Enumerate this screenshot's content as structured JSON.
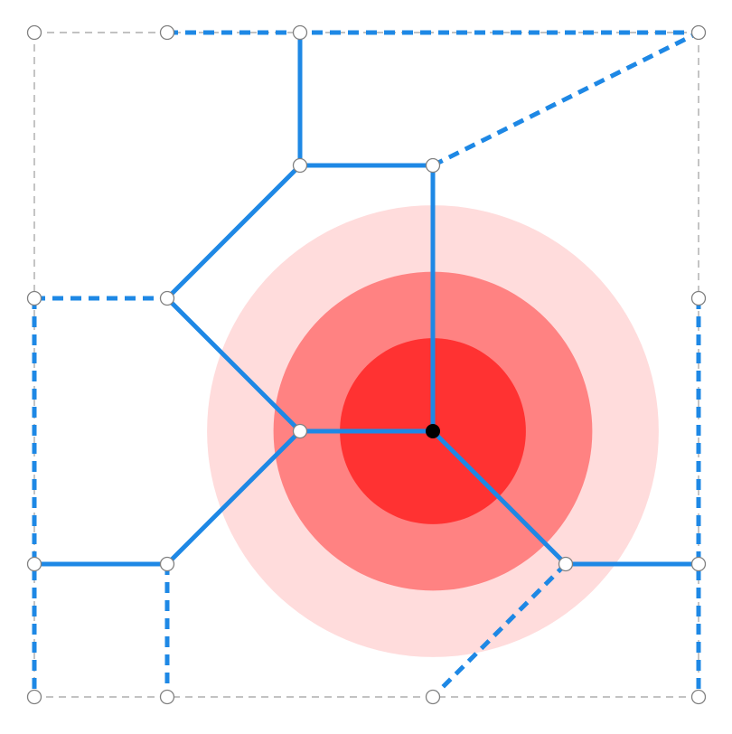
{
  "colors": {
    "background": "#ffffff",
    "edge": "#1e88e5",
    "boundary": "#9e9e9e",
    "ring_outer": "#ffdcdc",
    "ring_middle": "#ff8282",
    "ring_inner": "#ff3232",
    "center_node": "#000000",
    "node_fill": "#ffffff",
    "node_stroke": "#808080"
  },
  "diagram": {
    "nodes": [
      {
        "id": "tl",
        "gx": 0,
        "gy": 0
      },
      {
        "id": "t1",
        "gx": 1,
        "gy": 0
      },
      {
        "id": "t2",
        "gx": 2,
        "gy": 0
      },
      {
        "id": "tr",
        "gx": 5,
        "gy": 0
      },
      {
        "id": "n21",
        "gx": 2,
        "gy": 1
      },
      {
        "id": "n31",
        "gx": 3,
        "gy": 1
      },
      {
        "id": "l2",
        "gx": 0,
        "gy": 2
      },
      {
        "id": "n12",
        "gx": 1,
        "gy": 2
      },
      {
        "id": "r2",
        "gx": 5,
        "gy": 2
      },
      {
        "id": "n23",
        "gx": 2,
        "gy": 3
      },
      {
        "id": "c",
        "gx": 3,
        "gy": 3,
        "role": "center"
      },
      {
        "id": "l4",
        "gx": 0,
        "gy": 4
      },
      {
        "id": "n14",
        "gx": 1,
        "gy": 4
      },
      {
        "id": "n44",
        "gx": 4,
        "gy": 4
      },
      {
        "id": "r4",
        "gx": 5,
        "gy": 4
      },
      {
        "id": "bl",
        "gx": 0,
        "gy": 5
      },
      {
        "id": "b1",
        "gx": 1,
        "gy": 5
      },
      {
        "id": "b3",
        "gx": 3,
        "gy": 5
      },
      {
        "id": "br",
        "gx": 5,
        "gy": 5
      }
    ],
    "solid_edges": [
      [
        "t2",
        "n21"
      ],
      [
        "n21",
        "n31"
      ],
      [
        "n21",
        "n12"
      ],
      [
        "n31",
        "c"
      ],
      [
        "n12",
        "n23"
      ],
      [
        "n23",
        "c"
      ],
      [
        "n23",
        "n14"
      ],
      [
        "n14",
        "l4"
      ],
      [
        "c",
        "n44"
      ],
      [
        "n44",
        "r4"
      ]
    ],
    "dashed_edges": [
      [
        "t1",
        "tr"
      ],
      [
        "n31",
        "tr"
      ],
      [
        "l2",
        "n12"
      ],
      [
        "l2",
        "bl"
      ],
      [
        "n14",
        "b1"
      ],
      [
        "n44",
        "b3"
      ],
      [
        "r2",
        "br"
      ]
    ],
    "boundary": [
      [
        "tl",
        "tr"
      ],
      [
        "tr",
        "br"
      ],
      [
        "br",
        "bl"
      ],
      [
        "bl",
        "tl"
      ]
    ],
    "rings": [
      {
        "level": "outer",
        "radius": 1.7,
        "color_key": "ring_outer"
      },
      {
        "level": "middle",
        "radius": 1.2,
        "color_key": "ring_middle"
      },
      {
        "level": "inner",
        "radius": 0.7,
        "color_key": "ring_inner"
      }
    ]
  }
}
